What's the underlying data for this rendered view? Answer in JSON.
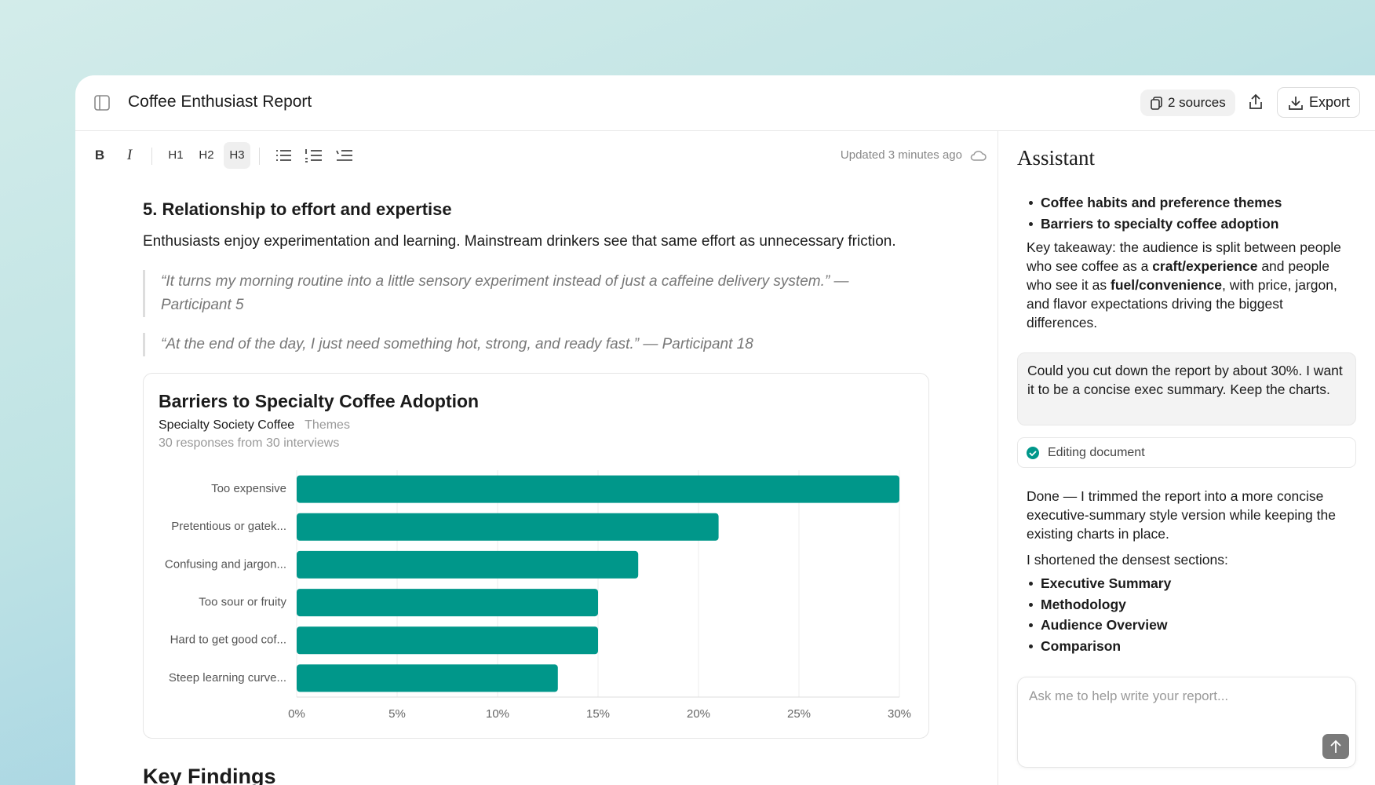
{
  "header": {
    "title": "Coffee Enthusiast Report",
    "sources": "2 sources",
    "export": "Export"
  },
  "toolbar": {
    "buttons": [
      "B",
      "I",
      "H1",
      "H2",
      "H3"
    ],
    "updated": "Updated 3 minutes ago"
  },
  "document": {
    "heading": "5. Relationship to effort and expertise",
    "paragraph": "Enthusiasts enjoy experimentation and learning. Mainstream drinkers see that same effort as unnecessary friction.",
    "quotes": [
      "“It turns my morning routine into a little sensory experiment instead of just a caffeine delivery system.” — Participant 5",
      "“At the end of the day, I just need something hot, strong, and ready fast.” — Participant 18"
    ],
    "next_heading": "Key Findings"
  },
  "chart_data": {
    "type": "barh",
    "title": "Barriers to Specialty Coffee Adoption",
    "subtitle": "Specialty Society Coffee",
    "tag": "Themes",
    "note": "30 responses from 30 interviews",
    "categories": [
      "Too expensive",
      "Pretentious or gatek...",
      "Confusing and jargon...",
      "Too sour or fruity",
      "Hard to get good cof...",
      "Steep learning curve..."
    ],
    "values": [
      30,
      21,
      17,
      15,
      15,
      13
    ],
    "color": "#00978a",
    "grid": true,
    "xlim": [
      0,
      30
    ],
    "xticks": [
      {
        "value": 0,
        "label": "0%"
      },
      {
        "value": 5,
        "label": "5%"
      },
      {
        "value": 10,
        "label": "10%"
      },
      {
        "value": 15,
        "label": "15%"
      },
      {
        "value": 20,
        "label": "20%"
      },
      {
        "value": 25,
        "label": "25%"
      },
      {
        "value": 30,
        "label": "30%"
      }
    ]
  },
  "assistant": {
    "title": "Assistant",
    "bullets_top": [
      "Coffee habits and preference themes",
      "Barriers to specialty coffee adoption"
    ],
    "takeaway": [
      {
        "text": "Key takeaway: the audience is split between people who see coffee as a "
      },
      {
        "text": "craft/experience",
        "bold": true
      },
      {
        "text": " and people who see it as "
      },
      {
        "text": "fuel/convenience",
        "bold": true
      },
      {
        "text": ", with price, jargon, and flavor expectations driving the biggest differences."
      }
    ],
    "user_message": "Could you cut down the report by about 30%. I want it to be a concise exec summary. Keep the charts.",
    "status": "Editing document",
    "reply": "Done — I trimmed the report into a more concise executive-summary style version while keeping the existing charts in place.",
    "reply2": "I shortened the densest sections:",
    "bullets_bottom": [
      "Executive Summary",
      "Methodology",
      "Audience Overview",
      "Comparison"
    ],
    "placeholder": "Ask me to help write your report..."
  }
}
